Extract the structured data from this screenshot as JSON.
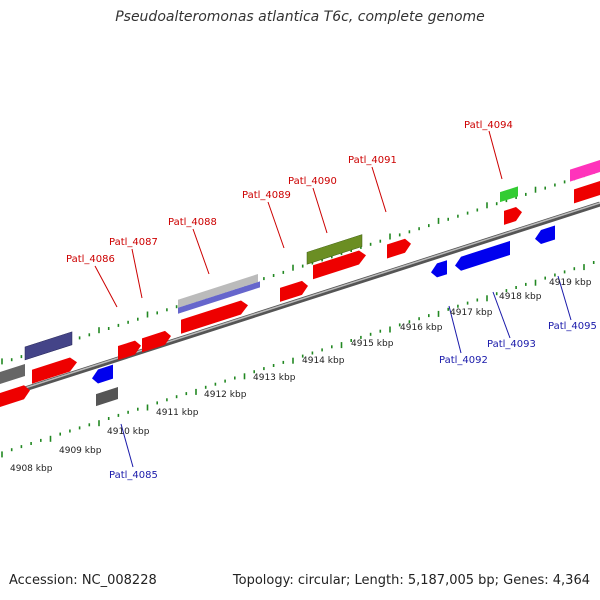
{
  "title": "Pseudoalteromonas atlantica T6c, complete genome",
  "accession": "Accession: NC_008228",
  "summary": "Topology: circular; Length: 5,187,005 bp; Genes: 4,364",
  "colors": {
    "forward_gene": "#ee0000",
    "reverse_gene": "#0000ee",
    "backbone": "#777777",
    "tick": "#228822",
    "label_top": "#cc0000",
    "label_bottom": "#1a1aaa",
    "feature_olive": "#6b8e23",
    "feature_green": "#33cc33",
    "feature_pink": "#ff33bb",
    "feature_purple": "#6666cc",
    "feature_slate": "#444488",
    "feature_gray": "#555555"
  },
  "scale_labels": [
    "4908 kbp",
    "4909 kbp",
    "4910 kbp",
    "4911 kbp",
    "4912 kbp",
    "4913 kbp",
    "4914 kbp",
    "4915 kbp",
    "4916 kbp",
    "4917 kbp",
    "4918 kbp",
    "4919 kbp"
  ],
  "gene_labels_top": [
    "Patl_4086",
    "Patl_4087",
    "Patl_4088",
    "Patl_4089",
    "Patl_4090",
    "Patl_4091",
    "Patl_4094"
  ],
  "gene_labels_bottom": [
    "Patl_4085",
    "Patl_4092",
    "Patl_4093",
    "Patl_4095"
  ]
}
